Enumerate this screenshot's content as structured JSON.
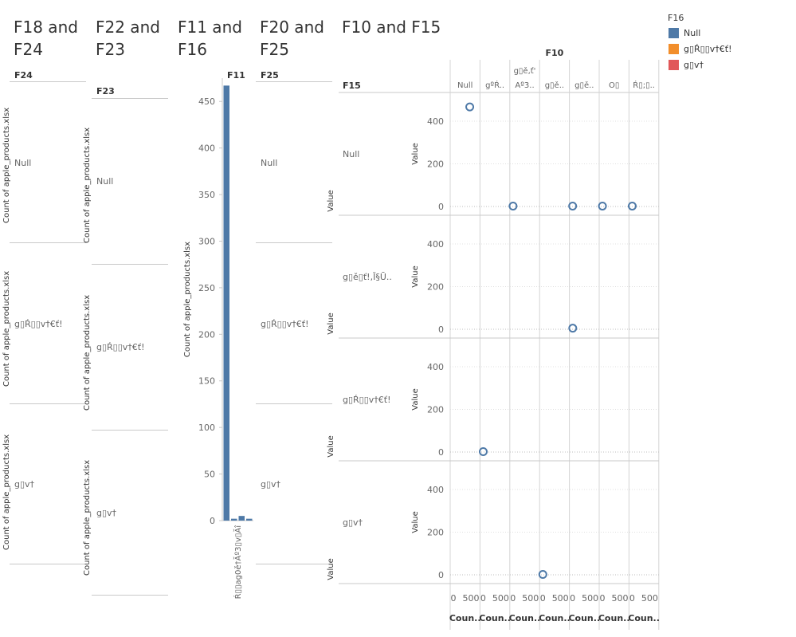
{
  "panels": {
    "p1": {
      "title_line1": "F18 and",
      "title_line2": "F24",
      "header": "F24",
      "axis_title": "Count of apple_products.xlsx",
      "rows": [
        "Null",
        "g▯Ŕ▯▯v†€ť!",
        "g▯v†"
      ]
    },
    "p2": {
      "title_line1": "F22 and",
      "title_line2": "F23",
      "header": "F23",
      "axis_title": "Count of apple_products.xlsx",
      "rows": [
        "Null",
        "g▯Ŕ▯▯v†€ť!",
        "g▯v†"
      ]
    },
    "p3": {
      "title_line1": "F11 and",
      "title_line2": "F16",
      "header": "F11"
    },
    "p4": {
      "title_line1": "F20 and",
      "title_line2": "F25",
      "header": "F25",
      "rows": [
        "Null",
        "g▯Ŕ▯▯v†€ť!",
        "g▯v†"
      ]
    },
    "p5": {
      "title": "F10 and F15",
      "col_header": "F10",
      "row_header": "F15"
    }
  },
  "legend": {
    "title": "F16",
    "items": [
      {
        "label": "Null",
        "color": "#4e79a7"
      },
      {
        "label": "g▯Ŕ▯▯v†€ť!",
        "color": "#f28e2b"
      },
      {
        "label": "g▯v†",
        "color": "#e15759"
      }
    ]
  },
  "chart_data": [
    {
      "type": "bar",
      "title": "F11 and F16",
      "xlabel": "",
      "ylabel": "Count of apple_products.xlsx",
      "ylim": [
        0,
        475
      ],
      "yticks": [
        0,
        50,
        100,
        150,
        200,
        250,
        300,
        350,
        400,
        450
      ],
      "categories": [
        "",
        "",
        "",
        ""
      ],
      "category_label": "Ŕ▯▯ag0ě†Ăº3▯v▯Ăî",
      "values": [
        467,
        2,
        5,
        2
      ]
    },
    {
      "type": "scatter",
      "title": "F10 and F15",
      "columns": [
        "Null",
        "gºŔ..",
        "g▯ě,ť' Aº3..",
        "g▯ě..",
        "g▯ě..",
        "O▯",
        "Ŕ▯;▯.."
      ],
      "rows": [
        "Null",
        "g▯ě▯ť!,Ī§Ū..",
        "g▯Ŕ▯▯v†€ť!",
        "g▯v†"
      ],
      "row_axis_title": "Value",
      "col_axis_title": "Coun..",
      "col_axis_ticks": [
        "0",
        "500"
      ],
      "ylim": [
        0,
        475
      ],
      "yticks": [
        0,
        200,
        400
      ],
      "points": [
        {
          "row": 0,
          "col": 0,
          "x": 467,
          "y": 467
        },
        {
          "row": 0,
          "col": 2,
          "x": 2,
          "y": 2
        },
        {
          "row": 0,
          "col": 4,
          "x": 2,
          "y": 2
        },
        {
          "row": 0,
          "col": 5,
          "x": 2,
          "y": 2
        },
        {
          "row": 0,
          "col": 6,
          "x": 2,
          "y": 2
        },
        {
          "row": 1,
          "col": 4,
          "x": 5,
          "y": 5
        },
        {
          "row": 2,
          "col": 1,
          "x": 2,
          "y": 2
        },
        {
          "row": 3,
          "col": 3,
          "x": 2,
          "y": 2
        }
      ]
    }
  ]
}
